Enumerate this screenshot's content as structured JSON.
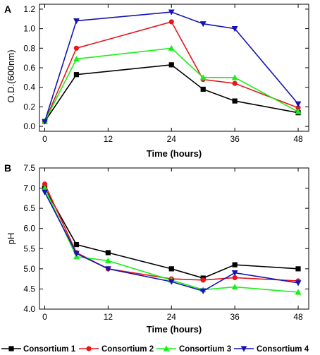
{
  "chart_data": [
    {
      "panel": "A",
      "type": "line",
      "xlabel": "Time (hours)",
      "ylabel": "O.D.(600nm)",
      "xlim": [
        -1,
        50
      ],
      "ylim": [
        -0.05,
        1.25
      ],
      "xticks": [
        0,
        12,
        24,
        36,
        48
      ],
      "yticks": [
        0.0,
        0.2,
        0.4,
        0.6,
        0.8,
        1.0,
        1.2
      ],
      "ytick_labels": [
        "0.0",
        "0.2",
        "0.4",
        "0.6",
        "0.8",
        "1.0",
        "1.2"
      ],
      "x": [
        0,
        6,
        24,
        30,
        36,
        48
      ],
      "series": [
        {
          "name": "Consortium 1",
          "values": [
            0.05,
            0.53,
            0.63,
            0.38,
            0.26,
            0.14
          ]
        },
        {
          "name": "Consortium 2",
          "values": [
            0.05,
            0.8,
            1.07,
            0.48,
            0.44,
            0.19
          ]
        },
        {
          "name": "Consortium 3",
          "values": [
            0.05,
            0.69,
            0.8,
            0.5,
            0.5,
            0.15
          ]
        },
        {
          "name": "Consortium 4",
          "values": [
            0.05,
            1.08,
            1.17,
            1.05,
            1.0,
            0.23
          ]
        }
      ]
    },
    {
      "panel": "B",
      "type": "line",
      "xlabel": "Time (hours)",
      "ylabel": "pH",
      "xlim": [
        -1,
        50
      ],
      "ylim": [
        4.0,
        7.5
      ],
      "xticks": [
        0,
        12,
        24,
        36,
        48
      ],
      "yticks": [
        4.0,
        4.5,
        5.0,
        5.5,
        6.0,
        6.5,
        7.0,
        7.5
      ],
      "ytick_labels": [
        "4.0",
        "4.5",
        "5.0",
        "5.5",
        "6.0",
        "6.5",
        "7.0",
        "7.5"
      ],
      "x": [
        0,
        6,
        12,
        24,
        30,
        36,
        48
      ],
      "series": [
        {
          "name": "Consortium 1",
          "values": [
            7.0,
            5.6,
            5.4,
            5.0,
            4.77,
            5.1,
            5.0
          ]
        },
        {
          "name": "Consortium 2",
          "values": [
            7.1,
            5.4,
            5.0,
            4.75,
            4.72,
            4.78,
            4.7
          ]
        },
        {
          "name": "Consortium 3",
          "values": [
            7.0,
            5.3,
            5.2,
            4.72,
            4.48,
            4.55,
            4.42
          ]
        },
        {
          "name": "Consortium 4",
          "values": [
            6.9,
            5.38,
            5.0,
            4.68,
            4.45,
            4.9,
            4.65
          ]
        }
      ]
    }
  ],
  "legend": {
    "placement": "bottom",
    "entries": [
      "Consortium 1",
      "Consortium 2",
      "Consortium 3",
      "Consortium 4"
    ]
  },
  "colors": [
    "#000000",
    "#e8161a",
    "#19f019",
    "#1414b4"
  ],
  "markers": [
    "square",
    "circle",
    "triangle-up",
    "triangle-down"
  ]
}
